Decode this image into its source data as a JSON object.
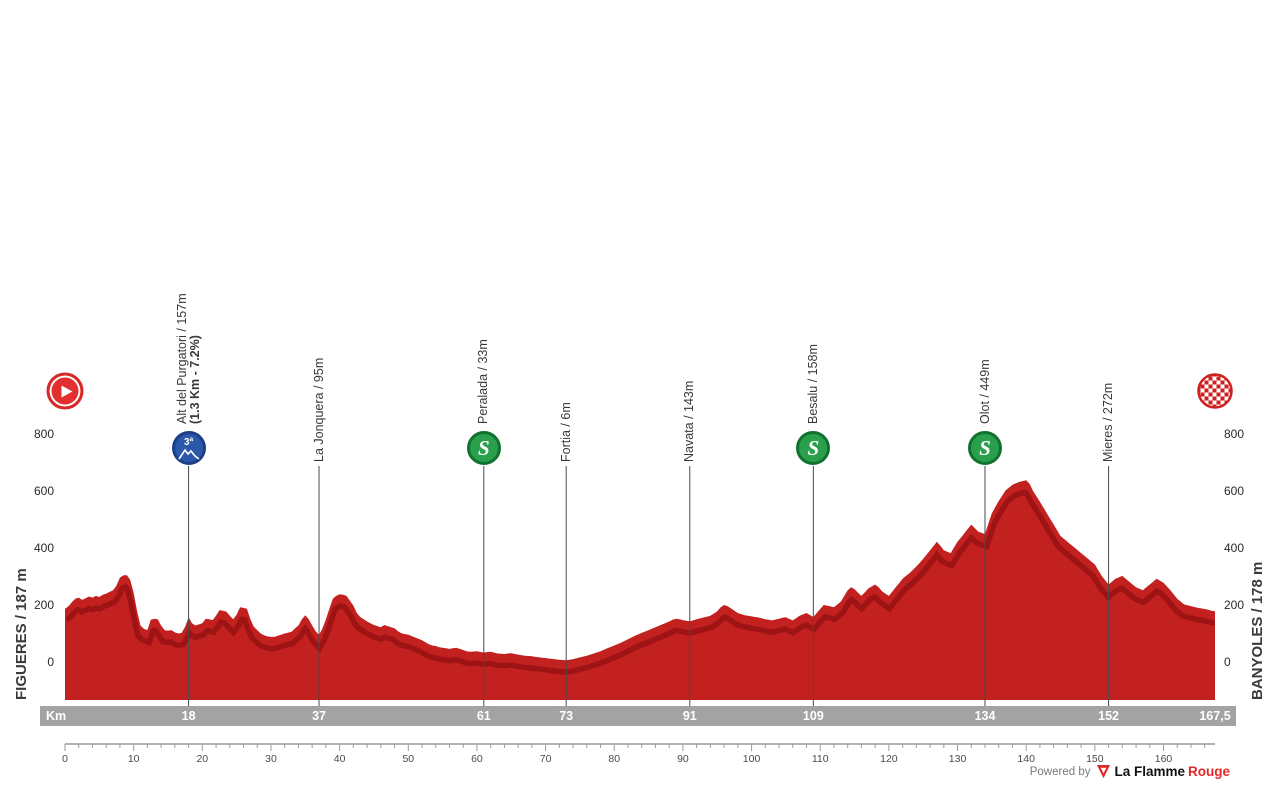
{
  "labels": {
    "start": "FIGUERES / 187 m",
    "finish": "BANYOLES / 178 m"
  },
  "axis": {
    "elevation_ticks": [
      800,
      600,
      400,
      200,
      0
    ]
  },
  "kmbar": {
    "unit": "Km",
    "total_label": "167,5"
  },
  "waypoints": [
    {
      "km": 18,
      "label": "Alt del Purgatori / 157m",
      "sub": "(1.3 Km - 7.2%)",
      "icon": "climb-cat3",
      "icon_text": "3ª",
      "km_label": "18"
    },
    {
      "km": 37,
      "label": "La Jonquera / 95m",
      "icon": null,
      "km_label": "37"
    },
    {
      "km": 61,
      "label": "Peralada / 33m",
      "icon": "sprint",
      "km_label": "61"
    },
    {
      "km": 73,
      "label": "Fortia / 6m",
      "icon": null,
      "km_label": "73"
    },
    {
      "km": 91,
      "label": "Navata / 143m",
      "icon": null,
      "km_label": "91"
    },
    {
      "km": 109,
      "label": "Besalu / 158m",
      "icon": "sprint",
      "km_label": "109"
    },
    {
      "km": 134,
      "label": "Olot / 449m",
      "icon": "sprint",
      "km_label": "134"
    },
    {
      "km": 152,
      "label": "Mieres / 272m",
      "icon": null,
      "km_label": "152"
    }
  ],
  "icons": {
    "sprint_letter": "S"
  },
  "footer": {
    "powered_by": "Powered by",
    "brand_black": "La Flamme",
    "brand_red": "Rouge"
  },
  "chart_data": {
    "type": "area",
    "xlabel": "Km",
    "xlim": [
      0,
      167.5
    ],
    "ylim": [
      0,
      800
    ],
    "x_ruler_labels": [
      0,
      10,
      20,
      30,
      40,
      50,
      60,
      70,
      80,
      90,
      100,
      110,
      120,
      130,
      140,
      150,
      160
    ],
    "start_elevation_m": 187,
    "finish_elevation_m": 178,
    "total_km": 167.5,
    "colors": {
      "profile": "#c32020",
      "profile_shade": "#9e1414",
      "bar_gray": "#a3a3a3",
      "line_gray": "#4a4a4a",
      "ruler_gray": "#9b9b9b"
    },
    "profile": [
      [
        0,
        187
      ],
      [
        0.5,
        195
      ],
      [
        1,
        210
      ],
      [
        1.5,
        222
      ],
      [
        2,
        226
      ],
      [
        2.5,
        218
      ],
      [
        3,
        224
      ],
      [
        3.5,
        230
      ],
      [
        4,
        226
      ],
      [
        4.5,
        232
      ],
      [
        5,
        228
      ],
      [
        5.5,
        236
      ],
      [
        6,
        240
      ],
      [
        6.5,
        246
      ],
      [
        7,
        252
      ],
      [
        7.5,
        268
      ],
      [
        8,
        296
      ],
      [
        8.5,
        304
      ],
      [
        9,
        305
      ],
      [
        9.5,
        288
      ],
      [
        10,
        242
      ],
      [
        10.5,
        178
      ],
      [
        11,
        128
      ],
      [
        11.5,
        116
      ],
      [
        12,
        112
      ],
      [
        12.5,
        148
      ],
      [
        13,
        152
      ],
      [
        13.5,
        150
      ],
      [
        14,
        128
      ],
      [
        14.5,
        112
      ],
      [
        15,
        110
      ],
      [
        15.5,
        112
      ],
      [
        16,
        104
      ],
      [
        16.5,
        100
      ],
      [
        17,
        102
      ],
      [
        17.5,
        124
      ],
      [
        18,
        157
      ],
      [
        18.5,
        136
      ],
      [
        19,
        128
      ],
      [
        19.5,
        132
      ],
      [
        20,
        136
      ],
      [
        20.5,
        152
      ],
      [
        21,
        150
      ],
      [
        21.5,
        147
      ],
      [
        22,
        162
      ],
      [
        22.5,
        182
      ],
      [
        23,
        180
      ],
      [
        23.5,
        177
      ],
      [
        24,
        162
      ],
      [
        24.5,
        150
      ],
      [
        25,
        166
      ],
      [
        25.5,
        192
      ],
      [
        26,
        190
      ],
      [
        26.5,
        187
      ],
      [
        27,
        150
      ],
      [
        27.5,
        124
      ],
      [
        28,
        112
      ],
      [
        28.5,
        100
      ],
      [
        29,
        94
      ],
      [
        29.5,
        90
      ],
      [
        30,
        88
      ],
      [
        30.5,
        88
      ],
      [
        31,
        92
      ],
      [
        31.5,
        96
      ],
      [
        32,
        100
      ],
      [
        32.5,
        103
      ],
      [
        33,
        106
      ],
      [
        33.5,
        118
      ],
      [
        34,
        128
      ],
      [
        34.5,
        150
      ],
      [
        35,
        164
      ],
      [
        35.5,
        150
      ],
      [
        36,
        128
      ],
      [
        36.5,
        108
      ],
      [
        37,
        95
      ],
      [
        37.5,
        118
      ],
      [
        38,
        150
      ],
      [
        38.5,
        186
      ],
      [
        39,
        222
      ],
      [
        39.5,
        232
      ],
      [
        40,
        238
      ],
      [
        40.5,
        236
      ],
      [
        41,
        232
      ],
      [
        41.5,
        215
      ],
      [
        42,
        198
      ],
      [
        42.5,
        172
      ],
      [
        43,
        158
      ],
      [
        43.5,
        150
      ],
      [
        44,
        142
      ],
      [
        44.5,
        136
      ],
      [
        45,
        130
      ],
      [
        45.5,
        126
      ],
      [
        46,
        122
      ],
      [
        46.5,
        130
      ],
      [
        47,
        126
      ],
      [
        47.5,
        122
      ],
      [
        48,
        118
      ],
      [
        48.5,
        108
      ],
      [
        49,
        101
      ],
      [
        49.5,
        98
      ],
      [
        50,
        96
      ],
      [
        50.5,
        91
      ],
      [
        51,
        86
      ],
      [
        51.5,
        81
      ],
      [
        52,
        76
      ],
      [
        52.5,
        69
      ],
      [
        53,
        62
      ],
      [
        53.5,
        58
      ],
      [
        54,
        56
      ],
      [
        54.5,
        52
      ],
      [
        55,
        50
      ],
      [
        55.5,
        48
      ],
      [
        56,
        46
      ],
      [
        56.5,
        48
      ],
      [
        57,
        50
      ],
      [
        57.5,
        46
      ],
      [
        58,
        42
      ],
      [
        58.5,
        38
      ],
      [
        59,
        36
      ],
      [
        59.5,
        37
      ],
      [
        60,
        38
      ],
      [
        60.5,
        35
      ],
      [
        61,
        33
      ],
      [
        61.5,
        35
      ],
      [
        62,
        36
      ],
      [
        62.5,
        33
      ],
      [
        63,
        30
      ],
      [
        63.5,
        29
      ],
      [
        64,
        28
      ],
      [
        64.5,
        30
      ],
      [
        65,
        31
      ],
      [
        65.5,
        28
      ],
      [
        66,
        26
      ],
      [
        66.5,
        24
      ],
      [
        67,
        22
      ],
      [
        67.5,
        21
      ],
      [
        68,
        20
      ],
      [
        68.5,
        18
      ],
      [
        69,
        17
      ],
      [
        69.5,
        15
      ],
      [
        70,
        14
      ],
      [
        70.5,
        12
      ],
      [
        71,
        11
      ],
      [
        71.5,
        9
      ],
      [
        72,
        8
      ],
      [
        72.5,
        7
      ],
      [
        73,
        6
      ],
      [
        73.5,
        8
      ],
      [
        74,
        10
      ],
      [
        75,
        16
      ],
      [
        76,
        22
      ],
      [
        77,
        30
      ],
      [
        78,
        38
      ],
      [
        79,
        48
      ],
      [
        80,
        58
      ],
      [
        81,
        68
      ],
      [
        82,
        80
      ],
      [
        83,
        92
      ],
      [
        84,
        102
      ],
      [
        85,
        112
      ],
      [
        86,
        122
      ],
      [
        87,
        132
      ],
      [
        88,
        142
      ],
      [
        88.5,
        148
      ],
      [
        89,
        152
      ],
      [
        89.5,
        150
      ],
      [
        90,
        147
      ],
      [
        90.5,
        145
      ],
      [
        91,
        143
      ],
      [
        91.5,
        146
      ],
      [
        92,
        150
      ],
      [
        92.5,
        153
      ],
      [
        93,
        156
      ],
      [
        93.5,
        159
      ],
      [
        94,
        162
      ],
      [
        94.5,
        170
      ],
      [
        95,
        178
      ],
      [
        95.5,
        192
      ],
      [
        96,
        200
      ],
      [
        96.5,
        196
      ],
      [
        97,
        188
      ],
      [
        97.5,
        180
      ],
      [
        98,
        172
      ],
      [
        98.5,
        168
      ],
      [
        99,
        164
      ],
      [
        99.5,
        162
      ],
      [
        100,
        160
      ],
      [
        100.5,
        158
      ],
      [
        101,
        156
      ],
      [
        101.5,
        153
      ],
      [
        102,
        150
      ],
      [
        102.5,
        148
      ],
      [
        103,
        146
      ],
      [
        103.5,
        149
      ],
      [
        104,
        152
      ],
      [
        104.5,
        155
      ],
      [
        105,
        157
      ],
      [
        105.5,
        151
      ],
      [
        106,
        146
      ],
      [
        106.5,
        154
      ],
      [
        107,
        162
      ],
      [
        107.5,
        167
      ],
      [
        108,
        172
      ],
      [
        108.5,
        165
      ],
      [
        109,
        158
      ],
      [
        109.5,
        172
      ],
      [
        110,
        186
      ],
      [
        110.5,
        200
      ],
      [
        111,
        198
      ],
      [
        111.5,
        195
      ],
      [
        112,
        192
      ],
      [
        112.5,
        202
      ],
      [
        113,
        212
      ],
      [
        113.5,
        232
      ],
      [
        114,
        252
      ],
      [
        114.5,
        262
      ],
      [
        115,
        255
      ],
      [
        115.5,
        243
      ],
      [
        116,
        232
      ],
      [
        116.5,
        245
      ],
      [
        117,
        258
      ],
      [
        117.5,
        265
      ],
      [
        118,
        272
      ],
      [
        118.5,
        262
      ],
      [
        119,
        248
      ],
      [
        119.5,
        240
      ],
      [
        120,
        232
      ],
      [
        120.5,
        247
      ],
      [
        121,
        262
      ],
      [
        121.5,
        277
      ],
      [
        122,
        292
      ],
      [
        122.5,
        302
      ],
      [
        123,
        312
      ],
      [
        123.5,
        323
      ],
      [
        124,
        335
      ],
      [
        124.5,
        348
      ],
      [
        125,
        362
      ],
      [
        125.5,
        377
      ],
      [
        126,
        392
      ],
      [
        126.5,
        407
      ],
      [
        127,
        422
      ],
      [
        127.5,
        408
      ],
      [
        128,
        392
      ],
      [
        128.5,
        387
      ],
      [
        129,
        382
      ],
      [
        129.5,
        402
      ],
      [
        130,
        422
      ],
      [
        130.5,
        437
      ],
      [
        131,
        452
      ],
      [
        131.5,
        467
      ],
      [
        132,
        482
      ],
      [
        132.5,
        470
      ],
      [
        133,
        458
      ],
      [
        133.5,
        453
      ],
      [
        134,
        449
      ],
      [
        134.5,
        486
      ],
      [
        135,
        522
      ],
      [
        135.5,
        544
      ],
      [
        136,
        565
      ],
      [
        136.5,
        584
      ],
      [
        137,
        602
      ],
      [
        137.5,
        612
      ],
      [
        138,
        622
      ],
      [
        138.5,
        627
      ],
      [
        139,
        632
      ],
      [
        139.5,
        635
      ],
      [
        140,
        638
      ],
      [
        140.5,
        625
      ],
      [
        141,
        600
      ],
      [
        141.5,
        581
      ],
      [
        142,
        562
      ],
      [
        142.5,
        542
      ],
      [
        143,
        522
      ],
      [
        143.5,
        502
      ],
      [
        144,
        482
      ],
      [
        144.5,
        462
      ],
      [
        145,
        442
      ],
      [
        145.5,
        432
      ],
      [
        146,
        422
      ],
      [
        146.5,
        412
      ],
      [
        147,
        402
      ],
      [
        147.5,
        392
      ],
      [
        148,
        382
      ],
      [
        148.5,
        372
      ],
      [
        149,
        362
      ],
      [
        149.5,
        352
      ],
      [
        150,
        342
      ],
      [
        150.5,
        322
      ],
      [
        151,
        302
      ],
      [
        151.5,
        287
      ],
      [
        152,
        272
      ],
      [
        152.5,
        282
      ],
      [
        153,
        292
      ],
      [
        153.5,
        297
      ],
      [
        154,
        302
      ],
      [
        154.5,
        292
      ],
      [
        155,
        282
      ],
      [
        155.5,
        272
      ],
      [
        156,
        262
      ],
      [
        156.5,
        257
      ],
      [
        157,
        252
      ],
      [
        157.5,
        262
      ],
      [
        158,
        272
      ],
      [
        158.5,
        282
      ],
      [
        159,
        292
      ],
      [
        159.5,
        285
      ],
      [
        160,
        278
      ],
      [
        160.5,
        265
      ],
      [
        161,
        252
      ],
      [
        161.5,
        237
      ],
      [
        162,
        222
      ],
      [
        162.5,
        212
      ],
      [
        163,
        202
      ],
      [
        163.5,
        199
      ],
      [
        164,
        196
      ],
      [
        164.5,
        193
      ],
      [
        165,
        190
      ],
      [
        165.5,
        188
      ],
      [
        166,
        186
      ],
      [
        166.5,
        183
      ],
      [
        167,
        180
      ],
      [
        167.5,
        178
      ]
    ]
  }
}
